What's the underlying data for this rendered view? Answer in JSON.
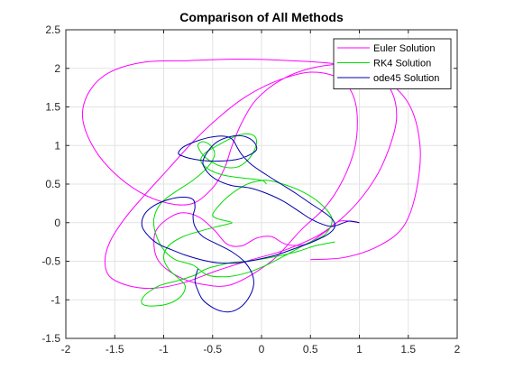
{
  "chart_data": {
    "type": "line",
    "title": "Comparison of All Methods",
    "xlabel": "",
    "ylabel": "",
    "xlim": [
      -2,
      2
    ],
    "ylim": [
      -1.5,
      2.5
    ],
    "xticks": [
      -2,
      -1.5,
      -1,
      -0.5,
      0,
      0.5,
      1,
      1.5,
      2
    ],
    "xtick_labels": [
      "-2",
      "-1.5",
      "-1",
      "-0.5",
      "0",
      "0.5",
      "1",
      "1.5",
      "2"
    ],
    "yticks": [
      -1.5,
      -1,
      -0.5,
      0,
      0.5,
      1,
      1.5,
      2,
      2.5
    ],
    "ytick_labels": [
      "-1.5",
      "-1",
      "-0.5",
      "0",
      "0.5",
      "1",
      "1.5",
      "2",
      "2.5"
    ],
    "grid": true,
    "legend_position": "top-right",
    "series": [
      {
        "name": "Euler Solution",
        "color": "#ff00ff",
        "x": [
          1.0,
          0.8,
          0.65,
          0.45,
          0.25,
          0.1,
          -0.05,
          -0.2,
          -0.35,
          -0.48,
          -0.65,
          -0.85,
          -1.05,
          -1.1,
          -1.05,
          -0.85,
          -0.6,
          -0.3,
          0.1,
          0.4,
          0.65,
          0.83,
          0.95,
          0.98,
          0.95,
          0.85,
          0.7,
          0.5,
          0.3,
          0.05,
          -0.2,
          -0.45,
          -0.7,
          -0.95,
          -1.2,
          -1.4,
          -1.55,
          -1.6,
          -1.55,
          -1.35,
          -1.1,
          -0.8,
          -0.45,
          -0.1,
          0.25,
          0.6,
          0.9,
          1.15,
          1.3,
          1.38,
          1.33,
          1.15,
          0.85,
          0.5,
          0.2,
          -0.05,
          -0.2,
          -0.3,
          -0.38,
          -0.5,
          -0.7,
          -0.95,
          -1.25,
          -1.55,
          -1.75,
          -1.83,
          -1.75,
          -1.55,
          -1.2,
          -0.75,
          -0.25,
          0.3,
          0.8,
          1.2,
          1.5,
          1.62,
          1.58,
          1.45,
          1.2,
          0.85,
          0.5
        ],
        "y": [
          0.0,
          0.02,
          -0.12,
          -0.28,
          -0.28,
          -0.18,
          -0.2,
          -0.3,
          -0.28,
          -0.1,
          0.08,
          0.12,
          -0.05,
          -0.25,
          -0.5,
          -0.7,
          -0.8,
          -0.8,
          -0.5,
          -0.1,
          0.2,
          0.55,
          0.95,
          1.3,
          1.6,
          1.82,
          1.92,
          1.95,
          1.9,
          1.78,
          1.6,
          1.35,
          1.05,
          0.7,
          0.35,
          0.05,
          -0.25,
          -0.5,
          -0.7,
          -0.82,
          -0.85,
          -0.78,
          -0.62,
          -0.48,
          -0.35,
          -0.15,
          0.15,
          0.55,
          0.95,
          1.35,
          1.7,
          1.95,
          2.05,
          2.0,
          1.85,
          1.6,
          1.3,
          1.0,
          0.7,
          0.45,
          0.25,
          0.25,
          0.4,
          0.7,
          1.05,
          1.4,
          1.72,
          1.95,
          2.08,
          2.1,
          2.12,
          2.1,
          2.05,
          1.9,
          1.55,
          1.0,
          0.4,
          -0.05,
          -0.3,
          -0.45,
          -0.48
        ]
      },
      {
        "name": "RK4 Solution",
        "color": "#00dd00",
        "x": [
          0.75,
          0.55,
          0.35,
          0.1,
          -0.15,
          -0.32,
          -0.42,
          -0.52,
          -0.6,
          -0.68,
          -0.85,
          -1.05,
          -1.2,
          -1.22,
          -1.12,
          -0.95,
          -0.82,
          -0.78,
          -0.85,
          -0.95,
          -1.0,
          -0.95,
          -0.8,
          -0.6,
          -0.45,
          -0.35,
          -0.3,
          -0.35,
          -0.45,
          -0.5,
          -0.45,
          -0.35,
          -0.22,
          -0.1,
          0.05,
          0.22,
          0.42,
          0.6,
          0.72,
          0.65,
          0.45,
          0.25,
          0.05,
          -0.15,
          -0.35,
          -0.55,
          -0.7,
          -0.88,
          -1.0,
          -1.08,
          -1.1,
          -1.03,
          -0.88,
          -0.7,
          -0.55,
          -0.48,
          -0.52,
          -0.6,
          -0.65,
          -0.6,
          -0.5,
          -0.38,
          -0.25,
          -0.15,
          -0.08,
          -0.05,
          -0.08,
          -0.18,
          -0.3,
          -0.45,
          -0.58,
          -0.62,
          -0.55,
          -0.4,
          -0.2,
          0.0,
          0.05
        ],
        "y": [
          -0.25,
          -0.3,
          -0.38,
          -0.45,
          -0.5,
          -0.52,
          -0.55,
          -0.58,
          -0.62,
          -0.68,
          -0.75,
          -0.82,
          -0.95,
          -1.05,
          -1.08,
          -1.05,
          -0.95,
          -0.82,
          -0.72,
          -0.6,
          -0.45,
          -0.3,
          -0.18,
          -0.1,
          -0.05,
          -0.02,
          0.0,
          0.02,
          0.05,
          0.1,
          0.2,
          0.33,
          0.45,
          0.52,
          0.55,
          0.5,
          0.4,
          0.25,
          0.05,
          -0.15,
          -0.28,
          -0.42,
          -0.55,
          -0.65,
          -0.7,
          -0.68,
          -0.55,
          -0.48,
          -0.35,
          -0.15,
          0.05,
          0.25,
          0.4,
          0.55,
          0.72,
          0.88,
          1.0,
          1.05,
          1.0,
          0.88,
          0.78,
          0.72,
          0.72,
          0.8,
          0.92,
          1.05,
          1.13,
          1.15,
          1.1,
          1.0,
          0.9,
          0.8,
          0.7,
          0.62,
          0.58,
          0.55,
          0.5
        ]
      },
      {
        "name": "ode45 Solution",
        "color": "#0000aa",
        "x": [
          1.0,
          0.9,
          0.8,
          0.72,
          0.62,
          0.5,
          0.38,
          0.22,
          0.05,
          -0.12,
          -0.3,
          -0.45,
          -0.55,
          -0.6,
          -0.55,
          -0.45,
          -0.3,
          -0.18,
          -0.08,
          -0.05,
          -0.12,
          -0.25,
          -0.4,
          -0.55,
          -0.68,
          -0.8,
          -0.85,
          -0.8,
          -0.68,
          -0.55,
          -0.45,
          -0.38,
          -0.32,
          -0.28,
          -0.25,
          -0.2,
          -0.1,
          0.05,
          0.2,
          0.35,
          0.5,
          0.62,
          0.72,
          0.75,
          0.68,
          0.52,
          0.35,
          0.15,
          -0.05,
          -0.25,
          -0.45,
          -0.62,
          -0.78,
          -0.92,
          -1.05,
          -1.15,
          -1.22,
          -1.2,
          -1.1,
          -0.95,
          -0.8,
          -0.7,
          -0.68,
          -0.7,
          -0.68,
          -0.6,
          -0.45,
          -0.3,
          -0.18,
          -0.1,
          -0.08,
          -0.12,
          -0.2,
          -0.3,
          -0.4,
          -0.5,
          -0.6,
          -0.65,
          -0.68,
          -0.65
        ],
        "y": [
          0.0,
          0.02,
          -0.02,
          -0.05,
          -0.02,
          0.05,
          0.15,
          0.28,
          0.38,
          0.45,
          0.48,
          0.55,
          0.65,
          0.78,
          0.92,
          1.05,
          1.12,
          1.12,
          1.05,
          0.95,
          0.88,
          0.82,
          0.8,
          0.8,
          0.82,
          0.86,
          0.9,
          0.98,
          1.05,
          1.1,
          1.12,
          1.12,
          1.1,
          1.05,
          0.98,
          0.88,
          0.75,
          0.62,
          0.5,
          0.38,
          0.25,
          0.15,
          0.05,
          -0.05,
          -0.15,
          -0.25,
          -0.33,
          -0.42,
          -0.48,
          -0.52,
          -0.52,
          -0.48,
          -0.42,
          -0.35,
          -0.28,
          -0.18,
          -0.05,
          0.1,
          0.22,
          0.3,
          0.33,
          0.3,
          0.2,
          0.08,
          -0.05,
          -0.18,
          -0.28,
          -0.38,
          -0.5,
          -0.65,
          -0.8,
          -0.95,
          -1.08,
          -1.15,
          -1.15,
          -1.1,
          -1.0,
          -0.88,
          -0.75,
          -0.6
        ]
      }
    ]
  }
}
